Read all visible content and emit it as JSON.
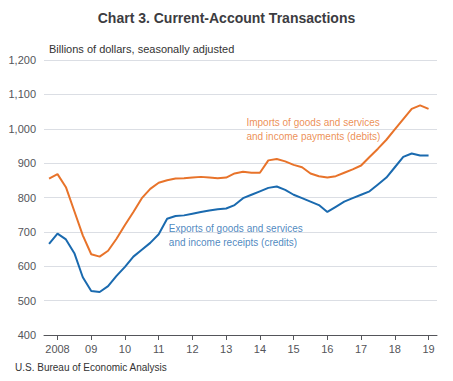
{
  "chart_data": {
    "type": "line",
    "title": "Chart 3. Current-Account Transactions",
    "subtitle": "Billions of dollars, seasonally adjusted",
    "footer": "U.S. Bureau of Economic Analysis",
    "x": [
      2007.75,
      2008.0,
      2008.25,
      2008.5,
      2008.75,
      2009.0,
      2009.25,
      2009.5,
      2009.75,
      2010.0,
      2010.25,
      2010.5,
      2010.75,
      2011.0,
      2011.25,
      2011.5,
      2011.75,
      2012.0,
      2012.25,
      2012.5,
      2012.75,
      2013.0,
      2013.25,
      2013.5,
      2013.75,
      2014.0,
      2014.25,
      2014.5,
      2014.75,
      2015.0,
      2015.25,
      2015.5,
      2015.75,
      2016.0,
      2016.25,
      2016.5,
      2016.75,
      2017.0,
      2017.25,
      2017.5,
      2017.75,
      2018.0,
      2018.25,
      2018.5,
      2018.75,
      2019.0
    ],
    "series": [
      {
        "color": "#E8732A",
        "values": [
          855,
          868,
          830,
          760,
          690,
          635,
          628,
          645,
          680,
          720,
          758,
          798,
          825,
          843,
          850,
          855,
          856,
          858,
          860,
          858,
          856,
          858,
          870,
          875,
          872,
          872,
          908,
          912,
          905,
          895,
          888,
          870,
          862,
          858,
          862,
          872,
          882,
          893,
          918,
          942,
          968,
          998,
          1028,
          1058,
          1068,
          1058
        ]
      },
      {
        "color": "#1A6AAF",
        "values": [
          665,
          695,
          678,
          638,
          568,
          528,
          525,
          542,
          572,
          598,
          628,
          648,
          668,
          693,
          738,
          746,
          748,
          753,
          758,
          762,
          766,
          768,
          778,
          798,
          808,
          818,
          828,
          832,
          822,
          808,
          798,
          788,
          778,
          758,
          773,
          788,
          798,
          808,
          818,
          838,
          858,
          888,
          918,
          928,
          922,
          922
        ]
      }
    ],
    "annotations": [
      {
        "text": "Imports of goods and services\nand income payments (debits)",
        "x": 2013.6,
        "y": 1040,
        "color": "#E8732A"
      },
      {
        "text": "Exports of goods and services\nand income receipts (credits)",
        "x": 2011.3,
        "y": 730,
        "color": "#1A6AAF"
      }
    ],
    "xlim": [
      2007.6,
      2019.25
    ],
    "xticks": [
      2008,
      {
        "value": 2009,
        "label": "09"
      },
      {
        "value": 2010,
        "label": "10"
      },
      {
        "value": 2011,
        "label": "11"
      },
      {
        "value": 2012,
        "label": "12"
      },
      {
        "value": 2013,
        "label": "13"
      },
      {
        "value": 2014,
        "label": "14"
      },
      {
        "value": 2015,
        "label": "15"
      },
      {
        "value": 2016,
        "label": "16"
      },
      {
        "value": 2017,
        "label": "17"
      },
      {
        "value": 2018,
        "label": "18"
      },
      {
        "value": 2019,
        "label": "19"
      }
    ],
    "ylim": [
      400,
      1200
    ],
    "yticks": [
      400,
      500,
      600,
      700,
      800,
      900,
      {
        "value": 1000,
        "label": "1,000"
      },
      {
        "value": 1100,
        "label": "1,100"
      },
      {
        "value": 1200,
        "label": "1,200"
      }
    ],
    "grid": true
  }
}
